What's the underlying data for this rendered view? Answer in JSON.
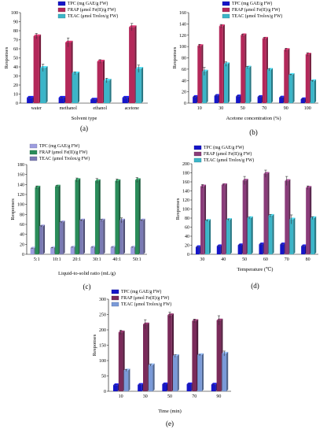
{
  "chart_data": [
    {
      "id": "a",
      "type": "bar",
      "panel_label": "(a)",
      "xlabel": "Solvent type",
      "ylabel": "Responses",
      "ylim": [
        0,
        100
      ],
      "yticks": [
        0,
        10,
        20,
        30,
        40,
        50,
        60,
        70,
        80,
        90,
        100
      ],
      "categories": [
        "water",
        "methanol",
        "ethanol",
        "acetone"
      ],
      "legend_position": "top-right",
      "series": [
        {
          "name": "TPC (mg GAE/g FW)",
          "color": "#1515c8",
          "values": [
            6,
            6,
            4,
            6
          ],
          "errors": [
            0.5,
            0.5,
            0.5,
            0.5
          ]
        },
        {
          "name": "FRAP (μmol Fe(II)/g FW)",
          "color": "#b3285a",
          "values": [
            74,
            67,
            46,
            84
          ],
          "errors": [
            3,
            5,
            2,
            4
          ]
        },
        {
          "name": "TEAC (μmol Trolox/g FW)",
          "color": "#3cb5c8",
          "values": [
            39,
            33,
            25,
            38
          ],
          "errors": [
            4,
            1.5,
            2.5,
            4
          ]
        }
      ]
    },
    {
      "id": "b",
      "type": "bar",
      "panel_label": "(b)",
      "xlabel": "Acetone concentration  (%)",
      "ylabel": "Responses",
      "ylim": [
        0,
        160
      ],
      "yticks": [
        0,
        20,
        40,
        60,
        80,
        100,
        120,
        140,
        160
      ],
      "categories": [
        "10",
        "30",
        "50",
        "70",
        "90",
        "100"
      ],
      "legend_position": "top-right",
      "series": [
        {
          "name": "TPC (mg GAE/g FW)",
          "color": "#1515c8",
          "values": [
            11,
            13,
            12,
            11,
            10,
            7
          ],
          "errors": [
            1,
            1,
            1,
            1,
            1,
            1
          ]
        },
        {
          "name": "FRAP (μmol Fe(II)/g FW)",
          "color": "#b3285a",
          "values": [
            101,
            136,
            120,
            114,
            94,
            86
          ],
          "errors": [
            3,
            3,
            2,
            2,
            3,
            3
          ]
        },
        {
          "name": "TEAC (μmol Trolox/g FW)",
          "color": "#3cb5c8",
          "values": [
            56,
            69,
            63,
            59,
            50,
            39
          ],
          "errors": [
            7,
            4,
            2,
            2,
            1,
            1
          ]
        }
      ]
    },
    {
      "id": "c",
      "type": "bar",
      "panel_label": "(c)",
      "xlabel": "Liquid-to-solid ratio (mL/g)",
      "ylabel": "Responses",
      "ylim": [
        0,
        180
      ],
      "yticks": [
        0,
        20,
        40,
        60,
        80,
        100,
        120,
        140,
        160,
        180
      ],
      "categories": [
        "5:1",
        "10:1",
        "20:1",
        "30:1",
        "40:1",
        "50:1"
      ],
      "legend_position": "top-left",
      "series": [
        {
          "name": "TPC (mg GAE/g FW)",
          "color": "#9d9de0",
          "values": [
            12,
            13,
            14,
            14,
            14,
            14
          ],
          "errors": [
            0.5,
            0.5,
            0.5,
            0.5,
            0.5,
            0.5
          ]
        },
        {
          "name": "FRAP (μmol Fe(II)/g FW)",
          "color": "#2a8c5a",
          "values": [
            134,
            136,
            149,
            147,
            147,
            149
          ],
          "errors": [
            3,
            2,
            4,
            5,
            4,
            5
          ]
        },
        {
          "name": "TEAC (μmol Trolox/g FW)",
          "color": "#7a7ab4",
          "values": [
            56,
            64,
            68,
            68,
            68,
            68
          ],
          "errors": [
            1,
            1,
            1,
            2,
            5,
            1
          ]
        }
      ]
    },
    {
      "id": "d",
      "type": "bar",
      "panel_label": "(d)",
      "xlabel": "Temperature (℃)",
      "ylabel": "Responses",
      "ylim": [
        0,
        200
      ],
      "yticks": [
        0,
        20,
        40,
        60,
        80,
        100,
        120,
        140,
        160,
        180,
        200
      ],
      "categories": [
        "30",
        "40",
        "50",
        "60",
        "70",
        "80"
      ],
      "legend_position": "top-left",
      "series": [
        {
          "name": "TPC (mg GAE/g FW)",
          "color": "#1515c8",
          "values": [
            16,
            18,
            20,
            22,
            22,
            18
          ],
          "errors": [
            1,
            1,
            1,
            1,
            1,
            1
          ]
        },
        {
          "name": "FRAP (μmol Fe(II)/g FW)",
          "color": "#8a3c7a",
          "values": [
            150,
            153,
            163,
            178,
            162,
            147
          ],
          "errors": [
            4,
            2,
            9,
            8,
            10,
            4
          ]
        },
        {
          "name": "TEAC (μmol Trolox/g FW)",
          "color": "#3cb5c8",
          "values": [
            74,
            76,
            80,
            85,
            77,
            80
          ],
          "errors": [
            2,
            2,
            2,
            3,
            10,
            3
          ]
        }
      ]
    },
    {
      "id": "e",
      "type": "bar",
      "panel_label": "(e)",
      "xlabel": "Time (min)",
      "ylabel": "Responses",
      "ylim": [
        0,
        300
      ],
      "yticks": [
        0,
        50,
        100,
        150,
        200,
        250,
        300
      ],
      "categories": [
        "10",
        "30",
        "50",
        "70",
        "90"
      ],
      "legend_position": "top",
      "series": [
        {
          "name": "TPC (mg GAE/g FW)",
          "color": "#1515c8",
          "values": [
            20,
            21,
            23,
            23,
            22
          ],
          "errors": [
            1,
            1,
            1,
            1,
            1
          ]
        },
        {
          "name": "FRAP (μmol Fe(II)/g FW)",
          "color": "#7a2a5a",
          "values": [
            192,
            218,
            248,
            229,
            231
          ],
          "errors": [
            7,
            15,
            10,
            6,
            15
          ]
        },
        {
          "name": "TEAC (μmol Trolox/g FW)",
          "color": "#7a9ad8",
          "values": [
            68,
            85,
            115,
            118,
            123
          ],
          "errors": [
            3,
            3,
            4,
            2,
            8
          ]
        }
      ]
    }
  ]
}
